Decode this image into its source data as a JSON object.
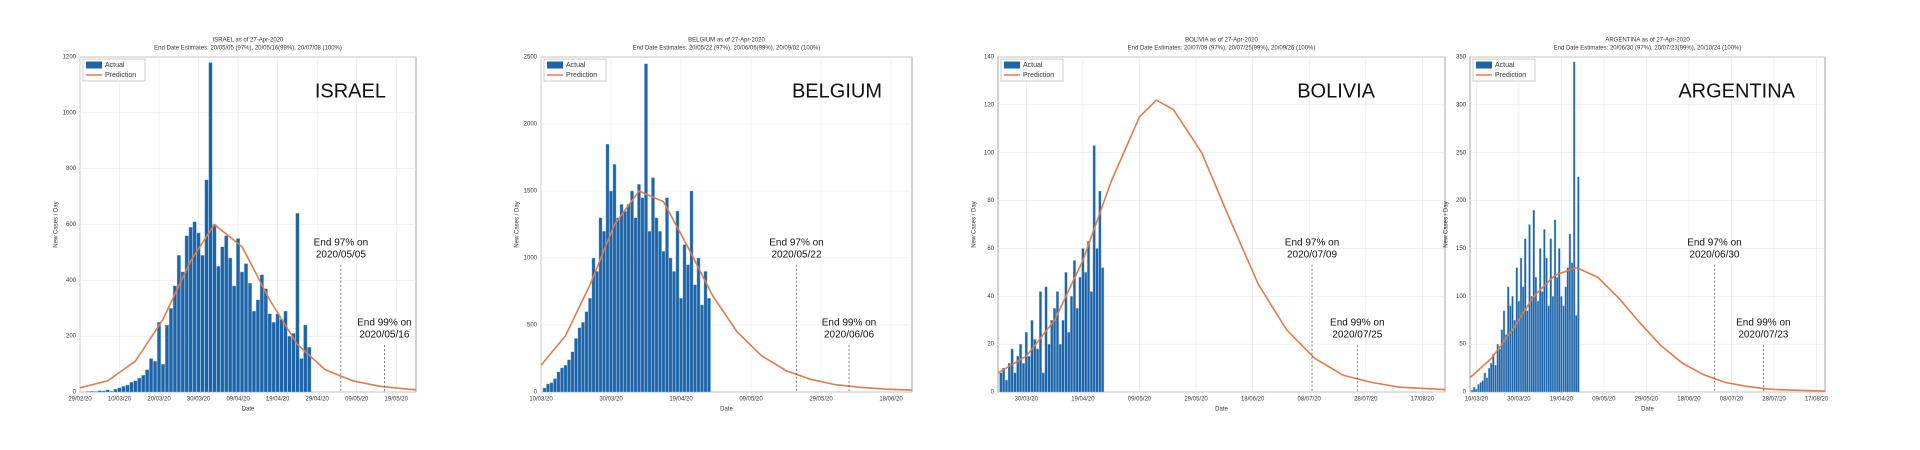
{
  "chart_data": [
    {
      "type": "bar",
      "title": "ISRAEL as of 27-Apr-2020",
      "subtitle": "End Date Estimates: 20/05/05 (97%), 20/05/16(99%), 20/07/08 (100%)",
      "label": "ISRAEL",
      "xlabel": "Date",
      "ylabel": "New Cases / Day",
      "grid": true,
      "legend": "upper left",
      "xlim": [
        "2020-02-29",
        "2020-05-24"
      ],
      "xticks": [
        {
          "value": "2020-02-29",
          "label": "29/02/20"
        },
        {
          "value": "2020-03-10",
          "label": "10/03/20"
        },
        {
          "value": "2020-03-20",
          "label": "20/03/20"
        },
        {
          "value": "2020-03-30",
          "label": "30/03/20"
        },
        {
          "value": "2020-04-09",
          "label": "09/04/20"
        },
        {
          "value": "2020-04-19",
          "label": "19/04/20"
        },
        {
          "value": "2020-04-29",
          "label": "29/04/20"
        },
        {
          "value": "2020-05-09",
          "label": "09/05/20"
        },
        {
          "value": "2020-05-19",
          "label": "19/05/20"
        }
      ],
      "ylim": [
        0,
        1200
      ],
      "yticks": [
        0,
        200,
        400,
        600,
        800,
        1000,
        1200
      ],
      "series": [
        {
          "name": "Actual",
          "color": "#1f64a6",
          "type": "bar",
          "x": [
            "2020-03-01",
            "2020-03-02",
            "2020-03-03",
            "2020-03-04",
            "2020-03-05",
            "2020-03-06",
            "2020-03-07",
            "2020-03-08",
            "2020-03-09",
            "2020-03-10",
            "2020-03-11",
            "2020-03-12",
            "2020-03-13",
            "2020-03-14",
            "2020-03-15",
            "2020-03-16",
            "2020-03-17",
            "2020-03-18",
            "2020-03-19",
            "2020-03-20",
            "2020-03-21",
            "2020-03-22",
            "2020-03-23",
            "2020-03-24",
            "2020-03-25",
            "2020-03-26",
            "2020-03-27",
            "2020-03-28",
            "2020-03-29",
            "2020-03-30",
            "2020-03-31",
            "2020-04-01",
            "2020-04-02",
            "2020-04-03",
            "2020-04-04",
            "2020-04-05",
            "2020-04-06",
            "2020-04-07",
            "2020-04-08",
            "2020-04-09",
            "2020-04-10",
            "2020-04-11",
            "2020-04-12",
            "2020-04-13",
            "2020-04-14",
            "2020-04-15",
            "2020-04-16",
            "2020-04-17",
            "2020-04-18",
            "2020-04-19",
            "2020-04-20",
            "2020-04-21",
            "2020-04-22",
            "2020-04-23",
            "2020-04-24",
            "2020-04-25",
            "2020-04-26",
            "2020-04-27"
          ],
          "values": [
            1,
            2,
            3,
            2,
            5,
            4,
            8,
            3,
            10,
            15,
            20,
            25,
            35,
            40,
            50,
            60,
            80,
            120,
            110,
            250,
            100,
            240,
            300,
            380,
            490,
            430,
            560,
            590,
            610,
            570,
            490,
            760,
            1180,
            600,
            450,
            520,
            560,
            480,
            380,
            550,
            430,
            460,
            390,
            290,
            330,
            420,
            370,
            280,
            250,
            280,
            260,
            290,
            200,
            210,
            640,
            120,
            240,
            160
          ]
        },
        {
          "name": "Prediction",
          "color": "#e07b4a",
          "type": "line",
          "x": [
            "2020-02-29",
            "2020-03-07",
            "2020-03-14",
            "2020-03-21",
            "2020-03-28",
            "2020-04-03",
            "2020-04-10",
            "2020-04-17",
            "2020-04-24",
            "2020-05-01",
            "2020-05-08",
            "2020-05-15",
            "2020-05-22",
            "2020-05-24"
          ],
          "values": [
            15,
            40,
            110,
            260,
            470,
            600,
            520,
            330,
            170,
            80,
            40,
            20,
            10,
            8
          ]
        }
      ],
      "annotations": [
        {
          "text": "End 97% on",
          "date": "2020/05/05",
          "x": "2020-05-05"
        },
        {
          "text": "End 99% on",
          "date": "2020/05/16",
          "x": "2020-05-16"
        }
      ]
    },
    {
      "type": "bar",
      "title": "BELGIUM as of 27-Apr-2020",
      "subtitle": "End Date Estimates: 20/05/22 (97%), 20/06/06(99%), 20/09/02 (100%)",
      "label": "BELGIUM",
      "xlabel": "Date",
      "ylabel": "New Cases / Day",
      "grid": true,
      "legend": "upper left",
      "xlim": [
        "2020-03-10",
        "2020-06-24"
      ],
      "xticks": [
        {
          "value": "2020-03-10",
          "label": "10/03/20"
        },
        {
          "value": "2020-03-30",
          "label": "30/03/20"
        },
        {
          "value": "2020-04-19",
          "label": "19/04/20"
        },
        {
          "value": "2020-05-09",
          "label": "09/05/20"
        },
        {
          "value": "2020-05-29",
          "label": "29/05/20"
        },
        {
          "value": "2020-06-18",
          "label": "18/06/20"
        }
      ],
      "ylim": [
        0,
        2500
      ],
      "yticks": [
        0,
        500,
        1000,
        1500,
        2000,
        2500
      ],
      "series": [
        {
          "name": "Actual",
          "color": "#1f64a6",
          "type": "bar",
          "x": [
            "2020-03-11",
            "2020-03-12",
            "2020-03-13",
            "2020-03-14",
            "2020-03-15",
            "2020-03-16",
            "2020-03-17",
            "2020-03-18",
            "2020-03-19",
            "2020-03-20",
            "2020-03-21",
            "2020-03-22",
            "2020-03-23",
            "2020-03-24",
            "2020-03-25",
            "2020-03-26",
            "2020-03-27",
            "2020-03-28",
            "2020-03-29",
            "2020-03-30",
            "2020-03-31",
            "2020-04-01",
            "2020-04-02",
            "2020-04-03",
            "2020-04-04",
            "2020-04-05",
            "2020-04-06",
            "2020-04-07",
            "2020-04-08",
            "2020-04-09",
            "2020-04-10",
            "2020-04-11",
            "2020-04-12",
            "2020-04-13",
            "2020-04-14",
            "2020-04-15",
            "2020-04-16",
            "2020-04-17",
            "2020-04-18",
            "2020-04-19",
            "2020-04-20",
            "2020-04-21",
            "2020-04-22",
            "2020-04-23",
            "2020-04-24",
            "2020-04-25",
            "2020-04-26",
            "2020-04-27"
          ],
          "values": [
            30,
            60,
            70,
            100,
            150,
            180,
            200,
            240,
            300,
            400,
            480,
            520,
            600,
            700,
            1000,
            900,
            1300,
            1200,
            1850,
            1500,
            1700,
            1300,
            1400,
            1350,
            1400,
            1500,
            1300,
            1550,
            1450,
            2450,
            1200,
            1600,
            1300,
            1200,
            1050,
            1450,
            1000,
            900,
            1350,
            700,
            1100,
            950,
            1500,
            800,
            1000,
            650,
            900,
            700
          ]
        },
        {
          "name": "Prediction",
          "color": "#e07b4a",
          "type": "line",
          "x": [
            "2020-03-10",
            "2020-03-17",
            "2020-03-24",
            "2020-03-31",
            "2020-04-07",
            "2020-04-14",
            "2020-04-21",
            "2020-04-28",
            "2020-05-05",
            "2020-05-12",
            "2020-05-19",
            "2020-05-26",
            "2020-06-02",
            "2020-06-09",
            "2020-06-16",
            "2020-06-24"
          ],
          "values": [
            200,
            420,
            800,
            1250,
            1500,
            1420,
            1080,
            720,
            450,
            270,
            160,
            95,
            55,
            35,
            22,
            14
          ]
        }
      ],
      "annotations": [
        {
          "text": "End 97% on",
          "date": "2020/05/22",
          "x": "2020-05-22"
        },
        {
          "text": "End 99% on",
          "date": "2020/06/06",
          "x": "2020-06-06"
        }
      ]
    },
    {
      "type": "bar",
      "title": "BOLIVIA as of 27-Apr-2020",
      "subtitle": "End Date Estimates: 20/07/09 (97%), 20/07/25(99%), 20/09/26 (100%)",
      "label": "BOLIVIA",
      "xlabel": "Date",
      "ylabel": "New Cases / Day",
      "grid": true,
      "legend": "upper left",
      "xlim": [
        "2020-03-20",
        "2020-08-25"
      ],
      "xticks": [
        {
          "value": "2020-03-30",
          "label": "30/03/20"
        },
        {
          "value": "2020-04-19",
          "label": "19/04/20"
        },
        {
          "value": "2020-05-09",
          "label": "09/05/20"
        },
        {
          "value": "2020-05-29",
          "label": "29/05/20"
        },
        {
          "value": "2020-06-18",
          "label": "18/06/20"
        },
        {
          "value": "2020-07-08",
          "label": "08/07/20"
        },
        {
          "value": "2020-07-28",
          "label": "28/07/20"
        },
        {
          "value": "2020-08-17",
          "label": "17/08/20"
        }
      ],
      "ylim": [
        0,
        140
      ],
      "yticks": [
        0,
        20,
        40,
        60,
        80,
        100,
        120,
        140
      ],
      "series": [
        {
          "name": "Actual",
          "color": "#1f64a6",
          "type": "bar",
          "x": [
            "2020-03-21",
            "2020-03-22",
            "2020-03-23",
            "2020-03-24",
            "2020-03-25",
            "2020-03-26",
            "2020-03-27",
            "2020-03-28",
            "2020-03-29",
            "2020-03-30",
            "2020-03-31",
            "2020-04-01",
            "2020-04-02",
            "2020-04-03",
            "2020-04-04",
            "2020-04-05",
            "2020-04-06",
            "2020-04-07",
            "2020-04-08",
            "2020-04-09",
            "2020-04-10",
            "2020-04-11",
            "2020-04-12",
            "2020-04-13",
            "2020-04-14",
            "2020-04-15",
            "2020-04-16",
            "2020-04-17",
            "2020-04-18",
            "2020-04-19",
            "2020-04-20",
            "2020-04-21",
            "2020-04-22",
            "2020-04-23",
            "2020-04-24",
            "2020-04-25",
            "2020-04-26"
          ],
          "values": [
            8,
            10,
            5,
            12,
            18,
            8,
            15,
            20,
            12,
            25,
            15,
            30,
            22,
            18,
            42,
            8,
            44,
            20,
            30,
            35,
            42,
            20,
            30,
            50,
            25,
            40,
            55,
            35,
            48,
            60,
            50,
            63,
            42,
            103,
            60,
            84,
            52
          ]
        },
        {
          "name": "Prediction",
          "color": "#e07b4a",
          "type": "line",
          "x": [
            "2020-03-20",
            "2020-03-30",
            "2020-04-09",
            "2020-04-19",
            "2020-04-29",
            "2020-05-09",
            "2020-05-15",
            "2020-05-21",
            "2020-05-31",
            "2020-06-10",
            "2020-06-20",
            "2020-06-30",
            "2020-07-10",
            "2020-07-20",
            "2020-07-30",
            "2020-08-09",
            "2020-08-25"
          ],
          "values": [
            8,
            15,
            30,
            55,
            88,
            115,
            122,
            118,
            100,
            72,
            45,
            26,
            14,
            7,
            4,
            2,
            1
          ]
        }
      ],
      "annotations": [
        {
          "text": "End 97% on",
          "date": "2020/07/09",
          "x": "2020-07-09"
        },
        {
          "text": "End 99% on",
          "date": "2020/07/25",
          "x": "2020-07-25"
        }
      ]
    },
    {
      "type": "bar",
      "title": "ARGENTINA as of 27-Apr-2020",
      "subtitle": "End Date Estimates: 20/06/30 (97%), 20/07/23(99%), 20/10/24 (100%)",
      "label": "ARGENTINA",
      "xlabel": "Date",
      "ylabel": "New Cases / Day",
      "grid": true,
      "legend": "upper left",
      "xlim": [
        "2020-03-07",
        "2020-08-21"
      ],
      "xticks": [
        {
          "value": "2020-03-10",
          "label": "10/03/20"
        },
        {
          "value": "2020-03-30",
          "label": "30/03/20"
        },
        {
          "value": "2020-04-19",
          "label": "19/04/20"
        },
        {
          "value": "2020-05-09",
          "label": "09/05/20"
        },
        {
          "value": "2020-05-29",
          "label": "29/05/20"
        },
        {
          "value": "2020-06-18",
          "label": "18/06/20"
        },
        {
          "value": "2020-07-08",
          "label": "08/07/20"
        },
        {
          "value": "2020-07-28",
          "label": "28/07/20"
        },
        {
          "value": "2020-08-17",
          "label": "17/08/20"
        }
      ],
      "ylim": [
        0,
        350
      ],
      "yticks": [
        0,
        50,
        100,
        150,
        200,
        250,
        300,
        350
      ],
      "series": [
        {
          "name": "Actual",
          "color": "#1f64a6",
          "type": "bar",
          "x": [
            "2020-03-08",
            "2020-03-09",
            "2020-03-10",
            "2020-03-11",
            "2020-03-12",
            "2020-03-13",
            "2020-03-14",
            "2020-03-15",
            "2020-03-16",
            "2020-03-17",
            "2020-03-18",
            "2020-03-19",
            "2020-03-20",
            "2020-03-21",
            "2020-03-22",
            "2020-03-23",
            "2020-03-24",
            "2020-03-25",
            "2020-03-26",
            "2020-03-27",
            "2020-03-28",
            "2020-03-29",
            "2020-03-30",
            "2020-03-31",
            "2020-04-01",
            "2020-04-02",
            "2020-04-03",
            "2020-04-04",
            "2020-04-05",
            "2020-04-06",
            "2020-04-07",
            "2020-04-08",
            "2020-04-09",
            "2020-04-10",
            "2020-04-11",
            "2020-04-12",
            "2020-04-13",
            "2020-04-14",
            "2020-04-15",
            "2020-04-16",
            "2020-04-17",
            "2020-04-18",
            "2020-04-19",
            "2020-04-20",
            "2020-04-21",
            "2020-04-22",
            "2020-04-23",
            "2020-04-24",
            "2020-04-25",
            "2020-04-26",
            "2020-04-27"
          ],
          "values": [
            2,
            5,
            3,
            8,
            10,
            12,
            20,
            15,
            25,
            30,
            40,
            28,
            50,
            45,
            65,
            85,
            60,
            110,
            90,
            100,
            75,
            130,
            95,
            140,
            110,
            160,
            85,
            175,
            100,
            190,
            120,
            95,
            150,
            105,
            170,
            140,
            90,
            160,
            100,
            180,
            120,
            150,
            100,
            90,
            110,
            130,
            165,
            135,
            345,
            80,
            225
          ]
        },
        {
          "name": "Prediction",
          "color": "#e07b4a",
          "type": "line",
          "x": [
            "2020-03-07",
            "2020-03-17",
            "2020-03-27",
            "2020-04-06",
            "2020-04-16",
            "2020-04-26",
            "2020-05-06",
            "2020-05-16",
            "2020-05-26",
            "2020-06-05",
            "2020-06-15",
            "2020-06-25",
            "2020-07-05",
            "2020-07-15",
            "2020-07-25",
            "2020-08-04",
            "2020-08-21"
          ],
          "values": [
            15,
            35,
            65,
            100,
            122,
            130,
            120,
            98,
            72,
            48,
            30,
            18,
            10,
            6,
            3,
            2,
            1
          ]
        }
      ],
      "annotations": [
        {
          "text": "End 97% on",
          "date": "2020/06/30",
          "x": "2020-06-30"
        },
        {
          "text": "End 99% on",
          "date": "2020/07/23",
          "x": "2020-07-23"
        }
      ]
    }
  ]
}
